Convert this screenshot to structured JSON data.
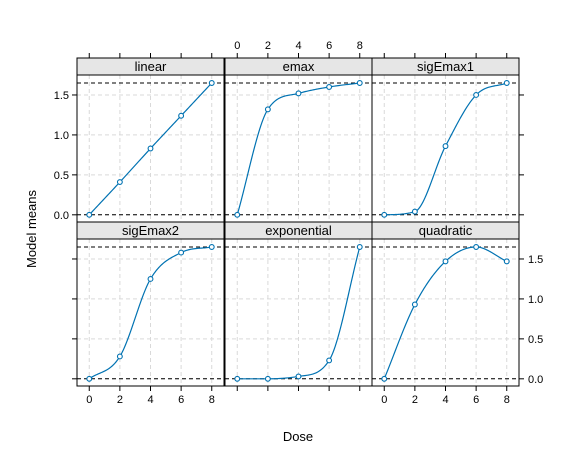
{
  "chart_data": {
    "type": "line",
    "xlabel": "Dose",
    "ylabel": "Model means",
    "xlim": [
      -0.8,
      8.8
    ],
    "ylim": [
      -0.09,
      1.75
    ],
    "x_ticks": [
      0,
      2,
      4,
      6,
      8
    ],
    "y_ticks": [
      0.0,
      0.5,
      1.0,
      1.5
    ],
    "y_tick_labels": [
      "0.0",
      "0.5",
      "1.0",
      "1.5"
    ],
    "dose_points": [
      0,
      2,
      4,
      6,
      8
    ],
    "reference_levels": [
      0,
      1.65
    ],
    "panels": [
      {
        "name": "linear",
        "values": [
          0,
          0.41,
          0.83,
          1.24,
          1.65
        ]
      },
      {
        "name": "emax",
        "values": [
          0,
          1.32,
          1.52,
          1.6,
          1.65
        ]
      },
      {
        "name": "sigEmax1",
        "values": [
          0,
          0.04,
          0.86,
          1.5,
          1.65
        ]
      },
      {
        "name": "sigEmax2",
        "values": [
          0,
          0.28,
          1.25,
          1.58,
          1.65
        ]
      },
      {
        "name": "exponential",
        "values": [
          0,
          0.0,
          0.03,
          0.23,
          1.65
        ]
      },
      {
        "name": "quadratic",
        "values": [
          0,
          0.93,
          1.47,
          1.65,
          1.47
        ]
      }
    ]
  }
}
